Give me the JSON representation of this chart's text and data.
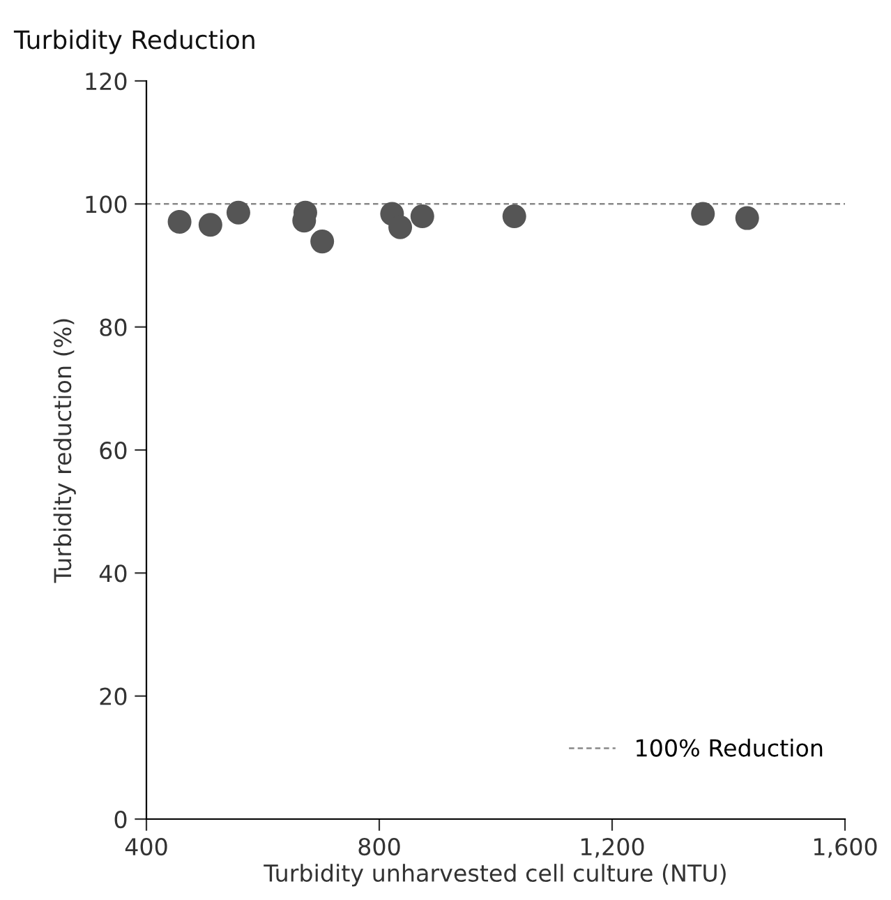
{
  "chart_data": {
    "type": "scatter",
    "title": "Turbidity Reduction",
    "xlabel": "Turbidity unharvested cell culture (NTU)",
    "ylabel": "Turbidity reduction (%)",
    "x": [
      457,
      510,
      558,
      673,
      671,
      702,
      822,
      836,
      874,
      1032,
      1356,
      1432
    ],
    "series": [
      {
        "color": "#555555",
        "values": [
          97.1,
          96.6,
          98.6,
          98.6,
          97.3,
          93.9,
          98.4,
          96.2,
          98.0,
          98.0,
          98.4,
          97.7
        ]
      }
    ],
    "marker": "circle",
    "xlim": [
      400,
      1600
    ],
    "ylim": [
      0,
      120
    ],
    "xticks": [
      {
        "value": 400,
        "label": "400"
      },
      {
        "value": 800,
        "label": "800"
      },
      {
        "value": 1200,
        "label": "1,200"
      },
      {
        "value": 1600,
        "label": "1,600"
      }
    ],
    "yticks": [
      0,
      20,
      40,
      60,
      80,
      100,
      120
    ],
    "ref_lines": [
      {
        "axis": "y",
        "value": 100,
        "label": "100% Reduction",
        "color": "#888888",
        "line_style": "dashed"
      }
    ],
    "grid": false,
    "legend": "lower right"
  }
}
